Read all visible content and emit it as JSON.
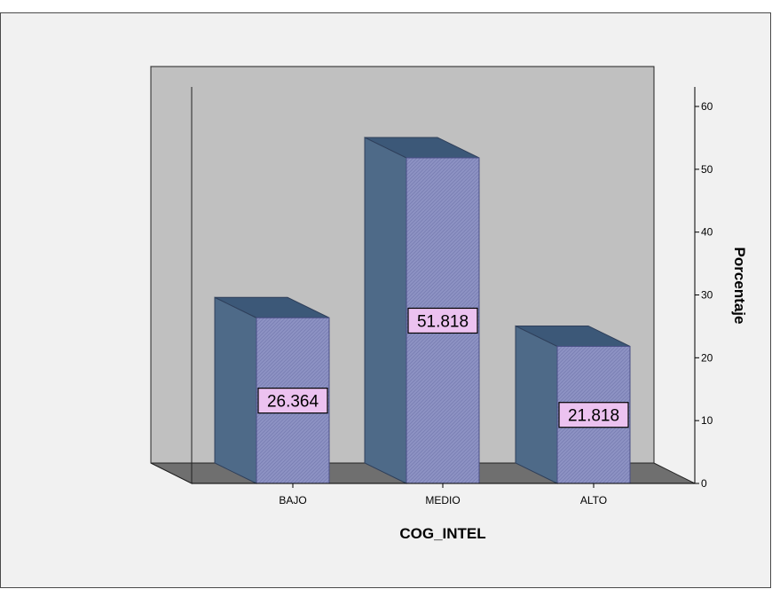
{
  "chart_data": {
    "type": "bar",
    "categories": [
      "BAJO",
      "MEDIO",
      "ALTO"
    ],
    "values": [
      26.364,
      51.818,
      21.818
    ],
    "data_labels": [
      "26.364",
      "51.818",
      "21.818"
    ],
    "xlabel": "COG_INTEL",
    "ylabel": "Porcentaje",
    "ylim": [
      0,
      60
    ],
    "yticks": [
      0,
      10,
      20,
      30,
      40,
      50,
      60
    ],
    "y_axis_side": "right",
    "style": "3d",
    "grid": false,
    "legend": "none",
    "colors": {
      "bar_front": "#8e93c4",
      "bar_side": "#4e6a88",
      "bar_top": "#3c5878",
      "back_wall": "#c0c0c0",
      "side_wall": "#707070",
      "floor": "#6f6f6f",
      "data_label_bg": "#ecc2f0",
      "frame_bg": "#f1f1f1"
    }
  }
}
